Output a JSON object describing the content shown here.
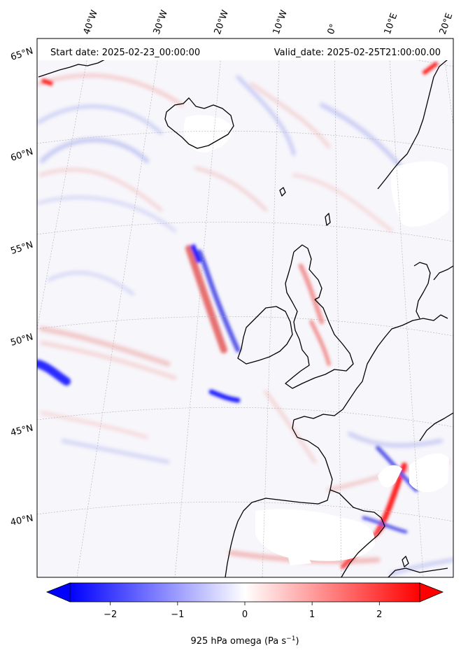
{
  "header": {
    "start_date": "Start date: 2025-02-23_00:00:00",
    "valid_date": "Valid_date: 2025-02-25T21:00:00.00"
  },
  "longitude_labels": [
    "40°W",
    "30°W",
    "20°W",
    "10°W",
    "0°",
    "10°E",
    "20°E"
  ],
  "latitude_labels": [
    "65°N",
    "60°N",
    "55°N",
    "50°N",
    "45°N",
    "40°N"
  ],
  "colorbar": {
    "label_text": "925 hPa omega (Pa s",
    "label_sup": "−1",
    "label_close": ")",
    "ticks": [
      "−2",
      "−1",
      "0",
      "1",
      "2"
    ],
    "tick_values": [
      -2,
      -1,
      0,
      1,
      2
    ],
    "vmin": -2.6,
    "vmax": 2.6,
    "colormap": "bwr",
    "extend": "both",
    "color_low": "#0000ff",
    "color_mid": "#ffffff",
    "color_high": "#ff0000"
  },
  "colors": {
    "coastline": "#000000",
    "gridline": "#b0b0b0"
  }
}
